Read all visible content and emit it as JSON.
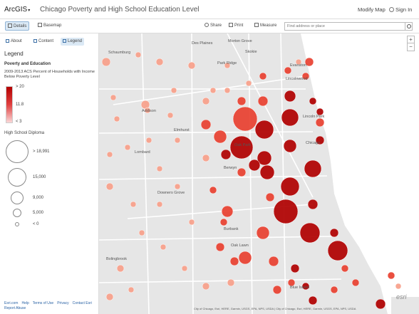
{
  "header": {
    "brand": "ArcGIS",
    "map_title": "Chicago Poverty and High School Education Level",
    "modify_map": "Modify Map",
    "sign_in": "Sign In"
  },
  "toolbar": {
    "details": "Details",
    "basemap": "Basemap",
    "share": "Share",
    "print": "Print",
    "measure": "Measure",
    "search_placeholder": "Find address or place"
  },
  "sidebar": {
    "tabs": [
      "About",
      "Content",
      "Legend"
    ],
    "legend_heading": "Legend",
    "layer_title": "Poverty and Education",
    "color_desc": "2009-2013 ACS Percent of Households with Income Below Poverty Level",
    "ramp_labels": [
      "> 20",
      "11.8",
      "< 3"
    ],
    "size_title": "High School Diploma",
    "size_labels": [
      "> 18,991",
      "15,000",
      "9,000",
      "5,000",
      "< 0"
    ],
    "footer_links": [
      "Esri.com",
      "Help",
      "Terms of Use",
      "Privacy",
      "Contact Esri",
      "Report Abuse"
    ]
  },
  "map": {
    "place_labels": [
      "Des Plaines",
      "Morton Grove",
      "Skokie",
      "Schaumburg",
      "Park Ridge",
      "Evanston",
      "Lincolnwood",
      "Addison",
      "Elmhurst",
      "Lincoln Park",
      "Lombard",
      "Oak Park",
      "Chicago",
      "Berwyn",
      "Downers Grove",
      "Burbank",
      "Oak Lawn",
      "Bolingbrook",
      "Blue Island"
    ],
    "attribution": "City of Chicago, Esri, HERE, Garmin, USGS, EPA, NPS, USDA | City of Chicago, Esri, HERE, Garmin, USGS, EPA, NPS, USDA",
    "esri_logo": "esri"
  },
  "colors": {
    "accent": "#2b63a5",
    "high": "#b00000",
    "mid": "#e84030",
    "low": "#f7a08a",
    "lake": "#ffffff"
  }
}
